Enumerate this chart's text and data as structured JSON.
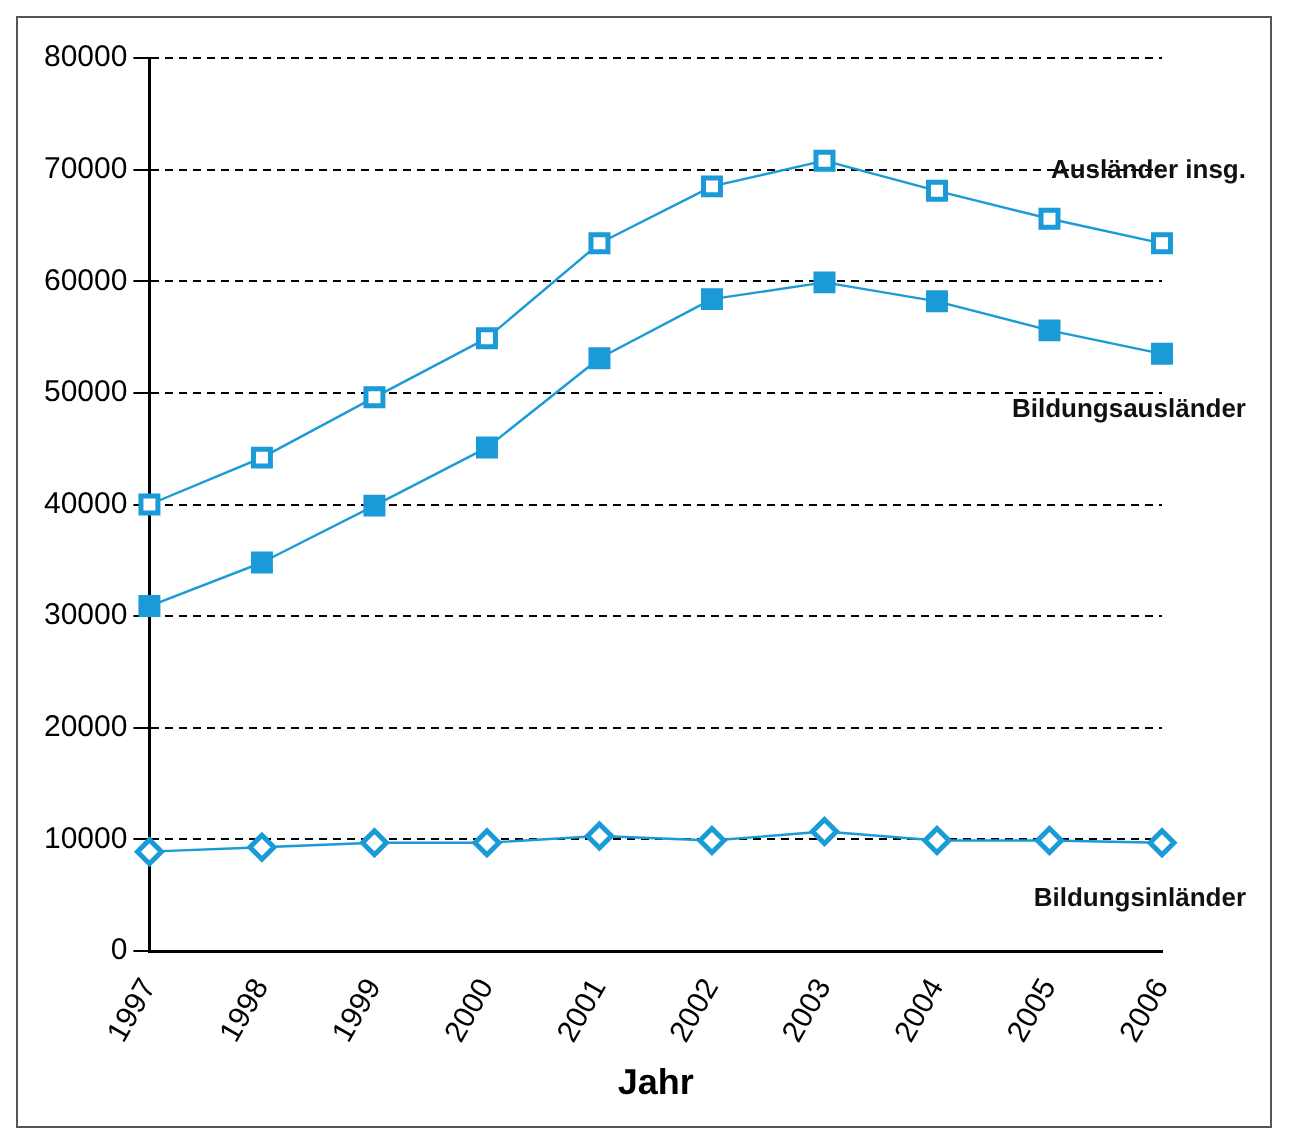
{
  "chart_data": {
    "type": "line",
    "xlabel": "Jahr",
    "categories": [
      "1997",
      "1998",
      "1999",
      "2000",
      "2001",
      "2002",
      "2003",
      "2004",
      "2005",
      "2006"
    ],
    "series": [
      {
        "name": "Ausländer insg.",
        "color": "#1a9ad6",
        "marker": "square",
        "values": [
          40000,
          44200,
          49600,
          54900,
          63400,
          68500,
          70800,
          68100,
          65600,
          63400
        ]
      },
      {
        "name": "Bildungsausländer",
        "color": "#1a9ad6",
        "marker": "square",
        "values": [
          30900,
          34800,
          39900,
          45100,
          53100,
          58400,
          59900,
          58200,
          55600,
          53500
        ]
      },
      {
        "name": "Bildungsinländer",
        "color": "#1a9ad6",
        "marker": "diamond",
        "values": [
          8900,
          9300,
          9700,
          9700,
          10300,
          9900,
          10700,
          9900,
          9900,
          9700
        ]
      }
    ],
    "ylim": [
      0,
      80000
    ],
    "yticks": [
      0,
      10000,
      20000,
      30000,
      40000,
      50000,
      60000,
      70000,
      80000
    ],
    "grid": "y",
    "legend": false,
    "line_style": "solid"
  }
}
